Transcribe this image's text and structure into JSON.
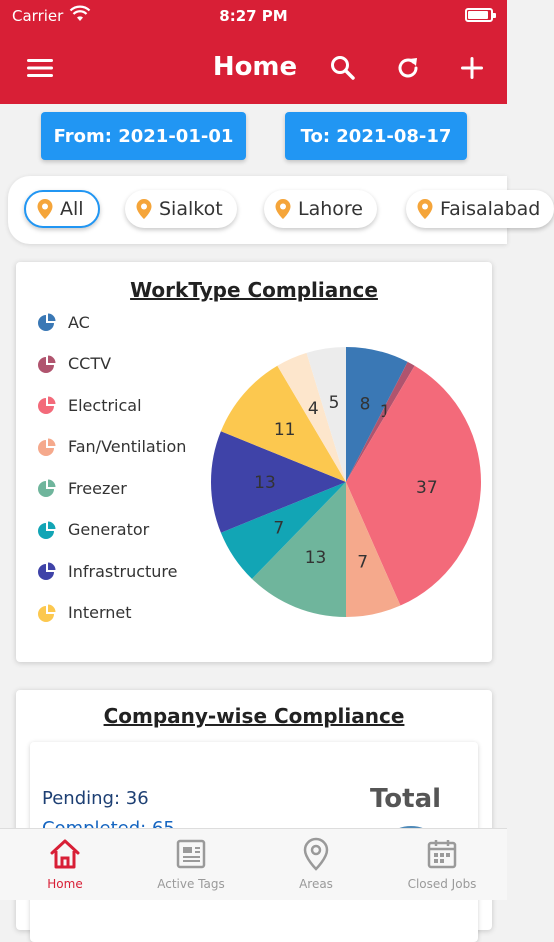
{
  "status_bar": {
    "carrier": "Carrier",
    "time": "8:27 PM"
  },
  "header": {
    "title": "Home"
  },
  "filters": {
    "from_label": "From: 2021-01-01",
    "to_label": "To: 2021-08-17"
  },
  "locations": [
    {
      "label": "All",
      "selected": true
    },
    {
      "label": "Sialkot",
      "selected": false
    },
    {
      "label": "Lahore",
      "selected": false
    },
    {
      "label": "Faisalabad",
      "selected": false
    }
  ],
  "worktype_card": {
    "title": "WorkType Compliance",
    "legend": [
      {
        "label": "AC",
        "color": "#3a78b5"
      },
      {
        "label": "CCTV",
        "color": "#b0546e"
      },
      {
        "label": "Electrical",
        "color": "#f36a7a"
      },
      {
        "label": "Fan/Ventilation",
        "color": "#f5a98c"
      },
      {
        "label": "Freezer",
        "color": "#6fb59c"
      },
      {
        "label": "Generator",
        "color": "#12a5b5"
      },
      {
        "label": "Infrastructure",
        "color": "#3f43a8"
      },
      {
        "label": "Internet",
        "color": "#fcc84f"
      }
    ]
  },
  "chart_data": {
    "type": "pie",
    "title": "WorkType Compliance",
    "slices": [
      {
        "label": "AC",
        "value": 8,
        "color": "#3a78b5"
      },
      {
        "label": "CCTV",
        "value": 1,
        "color": "#b0546e"
      },
      {
        "label": "Electrical",
        "value": 37,
        "color": "#f36a7a"
      },
      {
        "label": "Fan/Ventilation",
        "value": 7,
        "color": "#f5a98c"
      },
      {
        "label": "Freezer",
        "value": 13,
        "color": "#6fb59c"
      },
      {
        "label": "Generator",
        "value": 7,
        "color": "#12a5b5"
      },
      {
        "label": "Infrastructure",
        "value": 13,
        "color": "#3f43a8"
      },
      {
        "label": "Internet",
        "value": 11,
        "color": "#fcc84f"
      },
      {
        "label": "",
        "value": 4,
        "color": "#fde6cc"
      },
      {
        "label": "",
        "value": 5,
        "color": "#ececec"
      }
    ]
  },
  "company_card": {
    "title": "Company-wise Compliance",
    "pending": "Pending: 36",
    "completed": "Completed: 65",
    "total_label": "Total"
  },
  "tabs": [
    {
      "label": "Home",
      "active": true
    },
    {
      "label": "Active Tags",
      "active": false
    },
    {
      "label": "Areas",
      "active": false
    },
    {
      "label": "Closed Jobs",
      "active": false
    }
  ]
}
